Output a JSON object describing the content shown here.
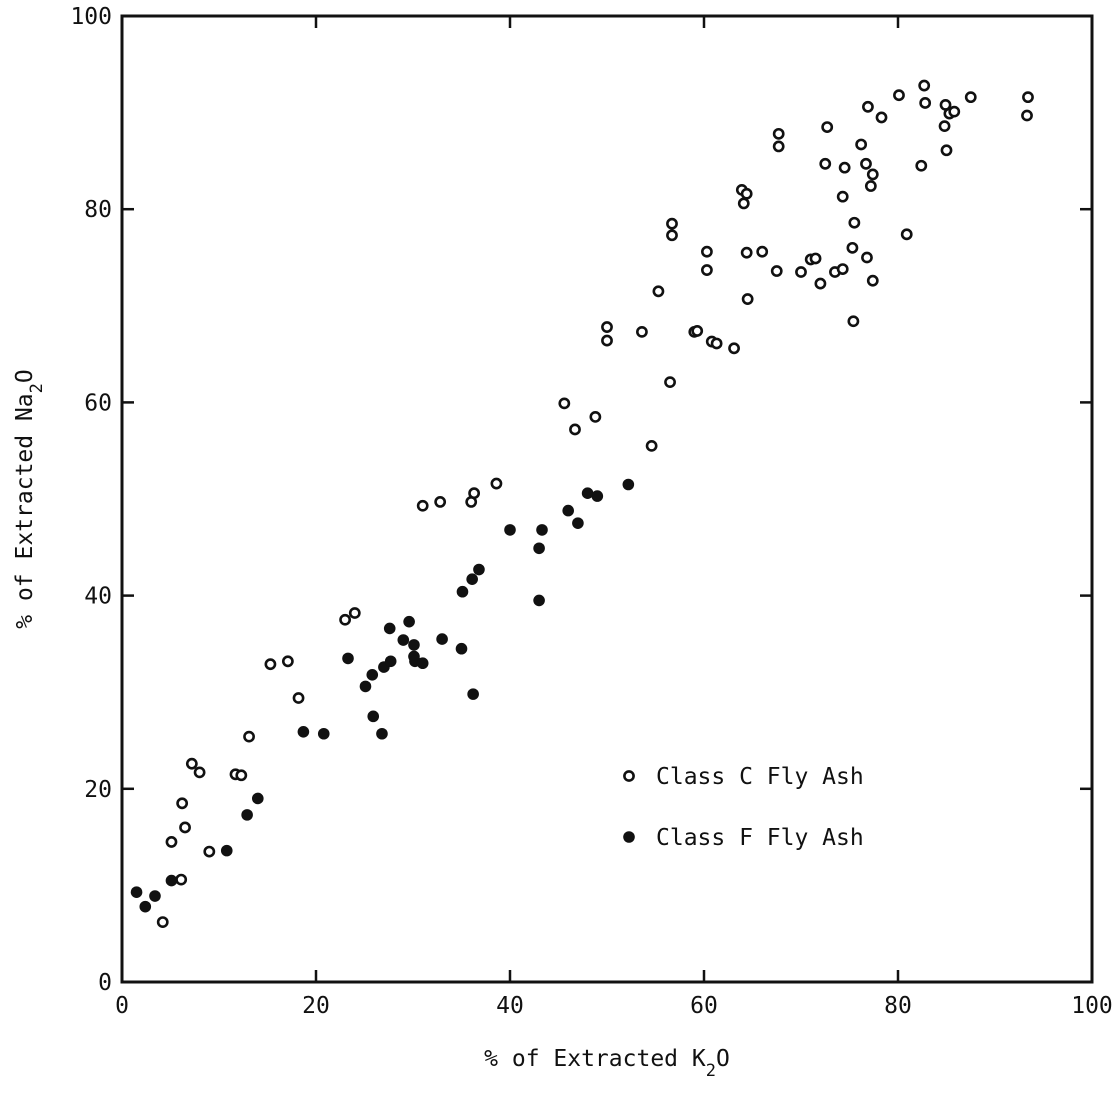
{
  "chart_data": {
    "type": "scatter",
    "title": "",
    "xlabel": {
      "prefix": "% of Extracted K",
      "subscript": "2",
      "suffix": "O"
    },
    "ylabel": {
      "prefix": "% of Extracted Na",
      "subscript": "2",
      "suffix": "O"
    },
    "xlim": [
      0,
      100
    ],
    "ylim": [
      0,
      100
    ],
    "xticks": [
      0,
      20,
      40,
      60,
      80,
      100
    ],
    "yticks": [
      0,
      20,
      40,
      60,
      80,
      100
    ],
    "xtick_labels": [
      "0",
      "20",
      "40",
      "60",
      "80",
      "100"
    ],
    "ytick_labels": [
      "0",
      "20",
      "40",
      "60",
      "80",
      "100"
    ],
    "grid": false,
    "legend_position": "lower-right inside plot",
    "series": [
      {
        "name": "Class C Fly Ash",
        "marker": "open-circle",
        "color": "#111111",
        "points": [
          [
            4.2,
            6.2
          ],
          [
            5.1,
            14.5
          ],
          [
            6.1,
            10.6
          ],
          [
            6.2,
            18.5
          ],
          [
            6.5,
            16.0
          ],
          [
            7.2,
            22.6
          ],
          [
            8.0,
            21.7
          ],
          [
            9.0,
            13.5
          ],
          [
            11.7,
            21.5
          ],
          [
            12.3,
            21.4
          ],
          [
            13.1,
            25.4
          ],
          [
            15.3,
            32.9
          ],
          [
            17.1,
            33.2
          ],
          [
            18.2,
            29.4
          ],
          [
            23.0,
            37.5
          ],
          [
            24.0,
            38.2
          ],
          [
            31.0,
            49.3
          ],
          [
            32.8,
            49.7
          ],
          [
            36.0,
            49.7
          ],
          [
            36.3,
            50.6
          ],
          [
            38.6,
            51.6
          ],
          [
            45.6,
            59.9
          ],
          [
            46.7,
            57.2
          ],
          [
            48.8,
            58.5
          ],
          [
            50.0,
            67.8
          ],
          [
            50.0,
            66.4
          ],
          [
            53.6,
            67.3
          ],
          [
            54.6,
            55.5
          ],
          [
            55.3,
            71.5
          ],
          [
            56.7,
            78.5
          ],
          [
            56.7,
            77.3
          ],
          [
            56.5,
            62.1
          ],
          [
            59.0,
            67.3
          ],
          [
            59.3,
            67.4
          ],
          [
            60.3,
            75.6
          ],
          [
            60.3,
            73.7
          ],
          [
            60.8,
            66.3
          ],
          [
            61.3,
            66.1
          ],
          [
            63.1,
            65.6
          ],
          [
            63.9,
            82.0
          ],
          [
            64.1,
            80.6
          ],
          [
            64.4,
            81.6
          ],
          [
            64.4,
            75.5
          ],
          [
            64.5,
            70.7
          ],
          [
            66.0,
            75.6
          ],
          [
            67.5,
            73.6
          ],
          [
            67.7,
            87.8
          ],
          [
            67.7,
            86.5
          ],
          [
            70.0,
            73.5
          ],
          [
            71.0,
            74.8
          ],
          [
            71.5,
            74.9
          ],
          [
            72.0,
            72.3
          ],
          [
            72.5,
            84.7
          ],
          [
            72.7,
            88.5
          ],
          [
            73.5,
            73.5
          ],
          [
            74.3,
            73.8
          ],
          [
            74.5,
            84.3
          ],
          [
            74.3,
            81.3
          ],
          [
            75.3,
            76.0
          ],
          [
            75.5,
            78.6
          ],
          [
            75.4,
            68.4
          ],
          [
            76.2,
            86.7
          ],
          [
            76.9,
            90.6
          ],
          [
            76.7,
            84.7
          ],
          [
            76.8,
            75.0
          ],
          [
            77.2,
            82.4
          ],
          [
            77.4,
            83.6
          ],
          [
            77.4,
            72.6
          ],
          [
            78.3,
            89.5
          ],
          [
            80.1,
            91.8
          ],
          [
            80.9,
            77.4
          ],
          [
            82.4,
            84.5
          ],
          [
            82.7,
            92.8
          ],
          [
            82.8,
            91.0
          ],
          [
            84.8,
            88.6
          ],
          [
            84.9,
            90.8
          ],
          [
            85.0,
            86.1
          ],
          [
            85.3,
            89.9
          ],
          [
            85.8,
            90.1
          ],
          [
            87.5,
            91.6
          ],
          [
            93.4,
            91.6
          ],
          [
            93.3,
            89.7
          ]
        ]
      },
      {
        "name": "Class F Fly Ash",
        "marker": "filled-circle",
        "color": "#111111",
        "points": [
          [
            1.5,
            9.3
          ],
          [
            2.4,
            7.8
          ],
          [
            3.4,
            8.9
          ],
          [
            5.1,
            10.5
          ],
          [
            10.8,
            13.6
          ],
          [
            12.9,
            17.3
          ],
          [
            14.0,
            19.0
          ],
          [
            18.7,
            25.9
          ],
          [
            20.8,
            25.7
          ],
          [
            23.3,
            33.5
          ],
          [
            25.1,
            30.6
          ],
          [
            25.8,
            31.8
          ],
          [
            25.9,
            27.5
          ],
          [
            26.8,
            25.7
          ],
          [
            27.0,
            32.6
          ],
          [
            27.6,
            36.6
          ],
          [
            27.7,
            33.2
          ],
          [
            29.0,
            35.4
          ],
          [
            29.6,
            37.3
          ],
          [
            30.1,
            34.9
          ],
          [
            30.1,
            33.7
          ],
          [
            30.2,
            33.2
          ],
          [
            31.0,
            33.0
          ],
          [
            33.0,
            35.5
          ],
          [
            35.0,
            34.5
          ],
          [
            35.1,
            40.4
          ],
          [
            36.1,
            41.7
          ],
          [
            36.2,
            29.8
          ],
          [
            36.8,
            42.7
          ],
          [
            40.0,
            46.8
          ],
          [
            43.0,
            44.9
          ],
          [
            43.0,
            39.5
          ],
          [
            43.3,
            46.8
          ],
          [
            46.0,
            48.8
          ],
          [
            47.0,
            47.5
          ],
          [
            48.0,
            50.6
          ],
          [
            49.0,
            50.3
          ],
          [
            52.2,
            51.5
          ]
        ]
      }
    ]
  }
}
